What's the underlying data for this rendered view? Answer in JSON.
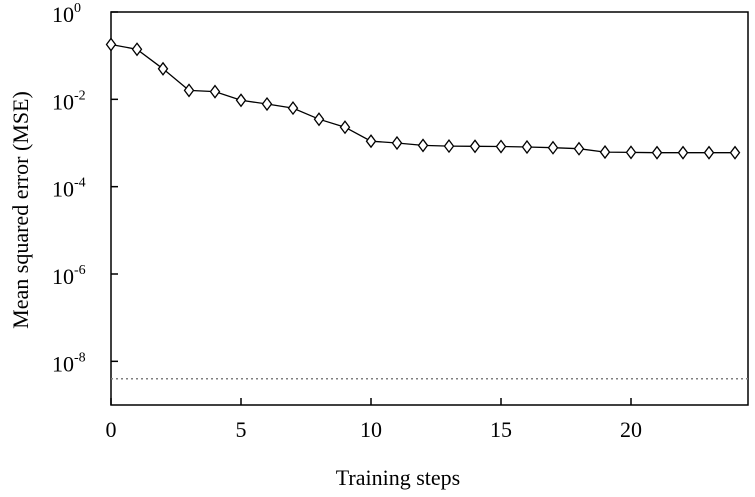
{
  "chart_data": {
    "type": "line",
    "xlabel": "Training steps",
    "ylabel": "Mean squared error (MSE)",
    "xlim": [
      0,
      24.5
    ],
    "ylim_exp": [
      -9.0,
      0.0
    ],
    "yscale": "log",
    "x_ticks": [
      0,
      5,
      10,
      15,
      20
    ],
    "y_ticks": [
      {
        "base": "10",
        "exp": "0",
        "value": 1
      },
      {
        "base": "10",
        "exp": "-2",
        "value": 0.01
      },
      {
        "base": "10",
        "exp": "-4",
        "value": 0.0001
      },
      {
        "base": "10",
        "exp": "-6",
        "value": 1e-06
      },
      {
        "base": "10",
        "exp": "-8",
        "value": 1e-08
      }
    ],
    "grid": false,
    "marker": "diamond",
    "series": [
      {
        "x": [
          0,
          1,
          2,
          3,
          4,
          5,
          6,
          7,
          8,
          9,
          10,
          11,
          12,
          13,
          14,
          15,
          16,
          17,
          18,
          19,
          20,
          21,
          22,
          23,
          24
        ],
        "y": [
          0.18,
          0.14,
          0.05,
          0.016,
          0.015,
          0.0095,
          0.0078,
          0.0063,
          0.0035,
          0.0023,
          0.0011,
          0.001,
          0.00088,
          0.00085,
          0.00084,
          0.00083,
          0.00081,
          0.00078,
          0.00074,
          0.00062,
          0.00061,
          0.0006,
          0.0006,
          0.0006,
          0.0006
        ]
      }
    ],
    "reference_line": {
      "value": 4e-09,
      "style": "dotted"
    }
  },
  "colors": {
    "line": "#000000",
    "reference_line": "#7f7f7f",
    "background": "#ffffff"
  }
}
